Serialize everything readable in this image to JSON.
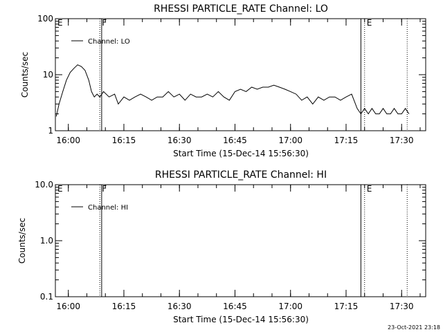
{
  "chart_data": [
    {
      "type": "line",
      "title": "RHESSI PARTICLE_RATE Channel: LO",
      "xlabel": "Start Time (15-Dec-14 15:56:30)",
      "ylabel": "Counts/sec",
      "yscale": "log",
      "ylim": [
        1,
        100
      ],
      "xlim": [
        "15:56:30",
        "17:36:30"
      ],
      "x_ticks": [
        "16:00",
        "16:15",
        "16:30",
        "16:45",
        "17:00",
        "17:15",
        "17:30"
      ],
      "y_ticks": [
        "1",
        "10",
        "100"
      ],
      "legend": "top-left",
      "series": [
        {
          "name": "Channel: LO",
          "time": [
            "15:56:45",
            "15:57:30",
            "15:58:30",
            "15:59:30",
            "16:00:30",
            "16:01:30",
            "16:02:30",
            "16:03:30",
            "16:04:30",
            "16:05:30",
            "16:06:15",
            "16:07:00",
            "16:07:45",
            "16:08:30",
            "16:09:30",
            "16:11:00",
            "16:12:30",
            "16:13:30",
            "16:15:00",
            "16:16:30",
            "16:18:00",
            "16:19:30",
            "16:21:00",
            "16:22:30",
            "16:24:00",
            "16:25:30",
            "16:27:00",
            "16:28:30",
            "16:30:00",
            "16:31:30",
            "16:33:00",
            "16:34:30",
            "16:36:00",
            "16:37:30",
            "16:39:00",
            "16:40:30",
            "16:42:00",
            "16:43:30",
            "16:45:00",
            "16:46:30",
            "16:48:00",
            "16:49:30",
            "16:51:00",
            "16:52:30",
            "16:54:00",
            "16:55:30",
            "16:57:00",
            "16:58:30",
            "17:00:00",
            "17:01:30",
            "17:03:00",
            "17:04:30",
            "17:06:00",
            "17:07:30",
            "17:09:00",
            "17:10:30",
            "17:12:00",
            "17:13:30",
            "17:15:00",
            "17:16:30",
            "17:18:00",
            "17:19:00",
            "17:20:00",
            "17:21:00",
            "17:22:00",
            "17:23:00",
            "17:24:00",
            "17:25:00",
            "17:26:00",
            "17:27:00",
            "17:28:00",
            "17:29:00",
            "17:30:00",
            "17:31:00",
            "17:32:00"
          ],
          "values": [
            1.8,
            3,
            5,
            8,
            11,
            13,
            15,
            14,
            12,
            8,
            5,
            4,
            4.5,
            4,
            5,
            4,
            4.5,
            3,
            4,
            3.5,
            4,
            4.5,
            4,
            3.5,
            4,
            4,
            5,
            4,
            4.5,
            3.5,
            4.5,
            4,
            4,
            4.5,
            4,
            5,
            4,
            3.5,
            5,
            5.5,
            5,
            6,
            5.5,
            6,
            6,
            6.5,
            6,
            5.5,
            5,
            4.5,
            3.5,
            4,
            3,
            4,
            3.5,
            4,
            4,
            3.5,
            4,
            4.5,
            2.5,
            2,
            2.5,
            2,
            2.5,
            2,
            2,
            2.5,
            2,
            2,
            2.5,
            2,
            2,
            2.5,
            2
          ]
        }
      ],
      "markers": [
        {
          "label": "E",
          "time": "15:56:30",
          "style": "solid"
        },
        {
          "label": "F",
          "time": "16:08:30",
          "style": "dotted"
        },
        {
          "label": "",
          "time": "16:09:00",
          "style": "solid"
        },
        {
          "label": "",
          "time": "17:19:00",
          "style": "solid"
        },
        {
          "label": "E",
          "time": "17:20:00",
          "style": "dotted"
        },
        {
          "label": "",
          "time": "17:31:30",
          "style": "dotted"
        }
      ]
    },
    {
      "type": "line",
      "title": "RHESSI PARTICLE_RATE Channel: HI",
      "xlabel": "Start Time (15-Dec-14 15:56:30)",
      "ylabel": "Counts/sec",
      "yscale": "log",
      "ylim": [
        0.1,
        10
      ],
      "xlim": [
        "15:56:30",
        "17:36:30"
      ],
      "x_ticks": [
        "16:00",
        "16:15",
        "16:30",
        "16:45",
        "17:00",
        "17:15",
        "17:30"
      ],
      "y_ticks": [
        "0.1",
        "1.0",
        "10.0"
      ],
      "legend": "top-left",
      "series": [
        {
          "name": "Channel: HI",
          "time": [],
          "values": []
        }
      ],
      "markers": [
        {
          "label": "E",
          "time": "15:56:30",
          "style": "solid"
        },
        {
          "label": "F",
          "time": "16:08:30",
          "style": "dotted"
        },
        {
          "label": "",
          "time": "16:09:00",
          "style": "solid"
        },
        {
          "label": "",
          "time": "17:19:00",
          "style": "solid"
        },
        {
          "label": "E",
          "time": "17:20:00",
          "style": "dotted"
        },
        {
          "label": "",
          "time": "17:31:30",
          "style": "dotted"
        }
      ]
    }
  ],
  "footer": {
    "timestamp": "23-Oct-2021 23:18"
  }
}
